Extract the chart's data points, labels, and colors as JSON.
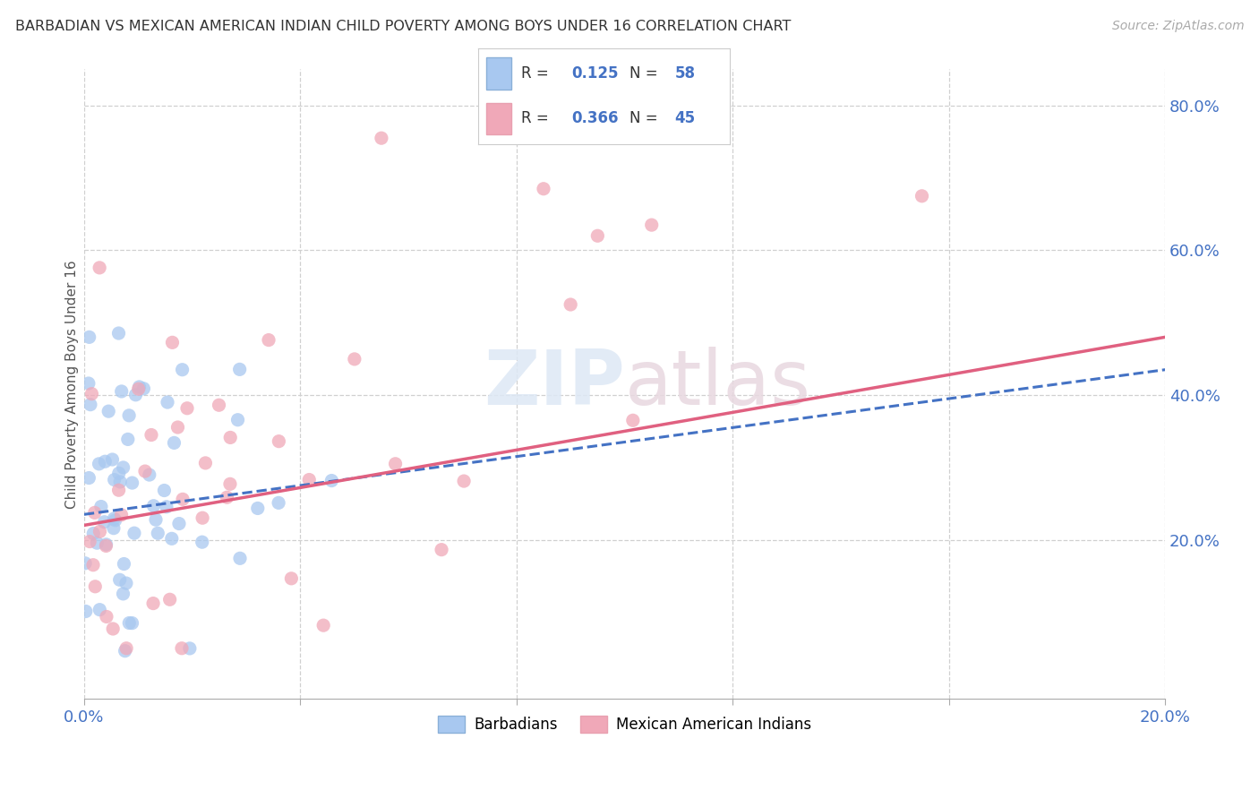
{
  "title": "BARBADIAN VS MEXICAN AMERICAN INDIAN CHILD POVERTY AMONG BOYS UNDER 16 CORRELATION CHART",
  "source": "Source: ZipAtlas.com",
  "ylabel": "Child Poverty Among Boys Under 16",
  "xlim": [
    0.0,
    0.2
  ],
  "ylim": [
    -0.02,
    0.85
  ],
  "blue_R": 0.125,
  "blue_N": 58,
  "pink_R": 0.366,
  "pink_N": 45,
  "blue_color": "#a8c8f0",
  "pink_color": "#f0a8b8",
  "blue_label": "Barbadians",
  "pink_label": "Mexican American Indians",
  "blue_line_color": "#4472c4",
  "pink_line_color": "#e06080",
  "watermark_zip": "ZIP",
  "watermark_atlas": "atlas",
  "background_color": "#ffffff",
  "title_color": "#333333",
  "axis_label_color": "#4472c4",
  "legend_text_color": "#333333",
  "grid_color": "#d0d0d0",
  "y_tick_vals": [
    0.2,
    0.4,
    0.6,
    0.8
  ],
  "y_tick_labels": [
    "20.0%",
    "40.0%",
    "60.0%",
    "80.0%"
  ],
  "x_tick_vals": [
    0.0,
    0.04,
    0.08,
    0.12,
    0.16,
    0.2
  ],
  "x_tick_labels": [
    "0.0%",
    "",
    "",
    "",
    "",
    "20.0%"
  ]
}
